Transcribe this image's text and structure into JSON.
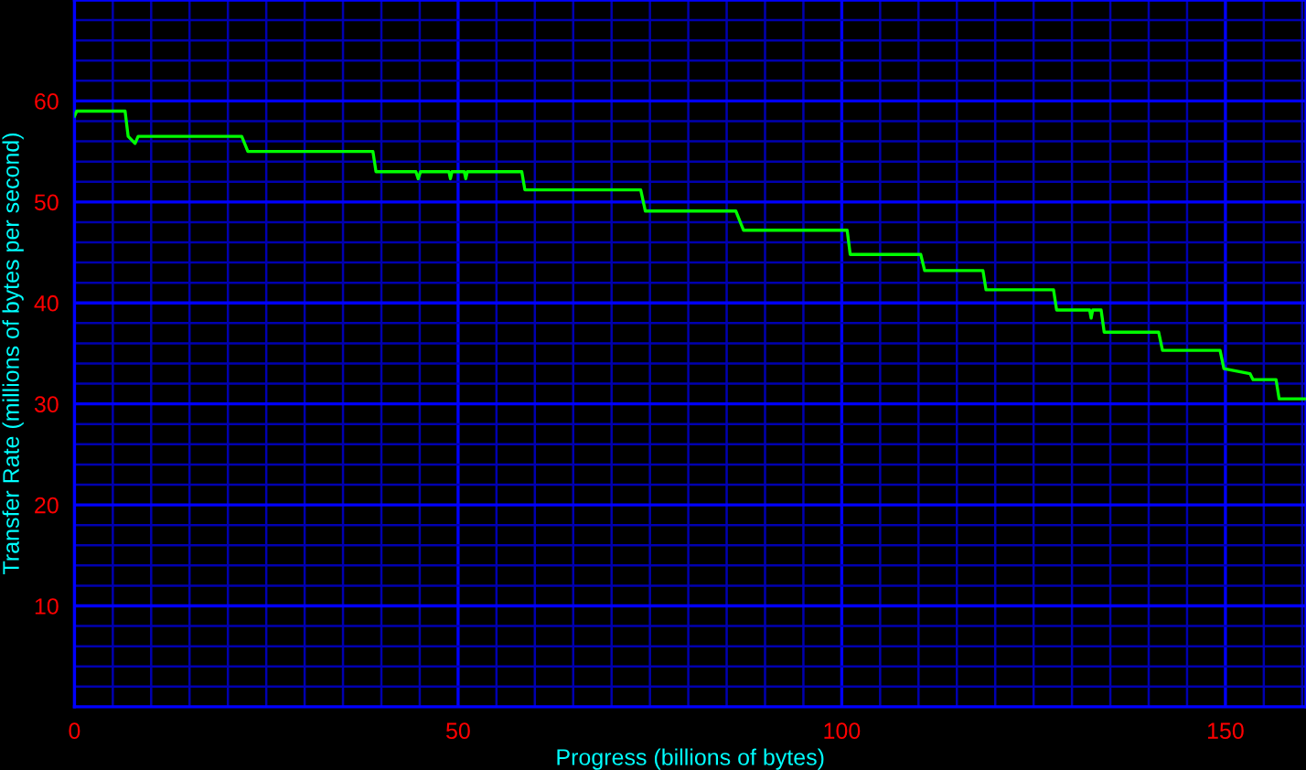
{
  "chart_data": {
    "type": "line",
    "xlabel": "Progress (billions of bytes)",
    "ylabel": "Transfer Rate (millions of bytes per second)",
    "xlim": [
      0,
      160.5
    ],
    "ylim": [
      0,
      70
    ],
    "grid": true,
    "line_style": "solid",
    "xticks": [
      {
        "value": 0,
        "label": "0"
      },
      {
        "value": 5,
        "label": null
      },
      {
        "value": 10,
        "label": null
      },
      {
        "value": 15,
        "label": null
      },
      {
        "value": 20,
        "label": null
      },
      {
        "value": 25,
        "label": null
      },
      {
        "value": 30,
        "label": null
      },
      {
        "value": 35,
        "label": null
      },
      {
        "value": 40,
        "label": null
      },
      {
        "value": 45,
        "label": null
      },
      {
        "value": 50,
        "label": "50"
      },
      {
        "value": 55,
        "label": null
      },
      {
        "value": 60,
        "label": null
      },
      {
        "value": 65,
        "label": null
      },
      {
        "value": 70,
        "label": null
      },
      {
        "value": 75,
        "label": null
      },
      {
        "value": 80,
        "label": null
      },
      {
        "value": 85,
        "label": null
      },
      {
        "value": 90,
        "label": null
      },
      {
        "value": 95,
        "label": null
      },
      {
        "value": 100,
        "label": "100"
      },
      {
        "value": 105,
        "label": null
      },
      {
        "value": 110,
        "label": null
      },
      {
        "value": 115,
        "label": null
      },
      {
        "value": 120,
        "label": null
      },
      {
        "value": 125,
        "label": null
      },
      {
        "value": 130,
        "label": null
      },
      {
        "value": 135,
        "label": null
      },
      {
        "value": 140,
        "label": null
      },
      {
        "value": 145,
        "label": null
      },
      {
        "value": 150,
        "label": "150"
      },
      {
        "value": 155,
        "label": null
      },
      {
        "value": 160,
        "label": null
      }
    ],
    "yticks": [
      {
        "value": 0,
        "label": null
      },
      {
        "value": 2,
        "label": null
      },
      {
        "value": 4,
        "label": null
      },
      {
        "value": 6,
        "label": null
      },
      {
        "value": 8,
        "label": null
      },
      {
        "value": 10,
        "label": "10"
      },
      {
        "value": 12,
        "label": null
      },
      {
        "value": 14,
        "label": null
      },
      {
        "value": 16,
        "label": null
      },
      {
        "value": 18,
        "label": null
      },
      {
        "value": 20,
        "label": "20"
      },
      {
        "value": 22,
        "label": null
      },
      {
        "value": 24,
        "label": null
      },
      {
        "value": 26,
        "label": null
      },
      {
        "value": 28,
        "label": null
      },
      {
        "value": 30,
        "label": "30"
      },
      {
        "value": 32,
        "label": null
      },
      {
        "value": 34,
        "label": null
      },
      {
        "value": 36,
        "label": null
      },
      {
        "value": 38,
        "label": null
      },
      {
        "value": 40,
        "label": "40"
      },
      {
        "value": 42,
        "label": null
      },
      {
        "value": 44,
        "label": null
      },
      {
        "value": 46,
        "label": null
      },
      {
        "value": 48,
        "label": null
      },
      {
        "value": 50,
        "label": "50"
      },
      {
        "value": 52,
        "label": null
      },
      {
        "value": 54,
        "label": null
      },
      {
        "value": 56,
        "label": null
      },
      {
        "value": 58,
        "label": null
      },
      {
        "value": 60,
        "label": "60"
      },
      {
        "value": 62,
        "label": null
      },
      {
        "value": 64,
        "label": null
      },
      {
        "value": 66,
        "label": null
      },
      {
        "value": 68,
        "label": null
      },
      {
        "value": 70,
        "label": null
      }
    ],
    "series": [
      {
        "color": "#00ff00",
        "x": [
          0,
          0.3,
          6.6,
          7.0,
          7.9,
          8.3,
          21.8,
          22.6,
          38.9,
          39.3,
          44.5,
          44.8,
          45.1,
          48.8,
          49.0,
          49.2,
          50.8,
          51.0,
          51.2,
          58.3,
          58.7,
          73.8,
          74.4,
          86.2,
          87.2,
          100.7,
          101.1,
          110.3,
          110.8,
          118.4,
          118.8,
          127.6,
          128.0,
          132.3,
          132.5,
          132.7,
          133.8,
          134.2,
          141.3,
          141.8,
          149.3,
          149.8,
          153.2,
          153.6,
          156.6,
          157.0,
          160.3
        ],
        "values": [
          58.5,
          59.0,
          59.0,
          56.5,
          55.8,
          56.5,
          56.5,
          55.0,
          55.0,
          53.0,
          53.0,
          52.3,
          53.0,
          53.0,
          52.3,
          53.0,
          53.0,
          52.3,
          53.0,
          53.0,
          51.2,
          51.2,
          49.1,
          49.1,
          47.2,
          47.2,
          44.8,
          44.8,
          43.2,
          43.2,
          41.3,
          41.3,
          39.3,
          39.3,
          38.5,
          39.3,
          39.3,
          37.1,
          37.1,
          35.3,
          35.3,
          33.5,
          33.0,
          32.4,
          32.4,
          30.5,
          30.5
        ]
      }
    ]
  }
}
